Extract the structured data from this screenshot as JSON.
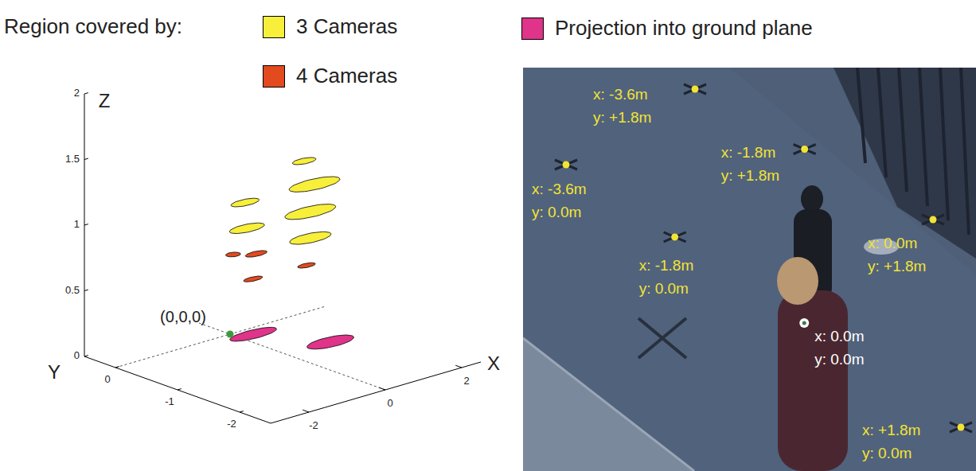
{
  "chart_data": {
    "type": "region3d",
    "legend_title": "Region covered by:",
    "x_label": "X",
    "y_label": "Y",
    "z_label": "Z",
    "xlim": [
      -3,
      2.5
    ],
    "ylim": [
      -2.5,
      0.5
    ],
    "zlim": [
      0,
      2
    ],
    "xticks": [
      -2,
      0,
      2
    ],
    "yticks": [
      -2,
      -1,
      0
    ],
    "zticks": [
      0,
      0.5,
      1,
      1.5,
      2
    ],
    "series": [
      {
        "name": "3 Cameras",
        "color": "#f7ef3a",
        "regions": [
          {
            "x": 0.64,
            "y": -0.8,
            "z": 1.4,
            "rx": 0.28,
            "ry": 0.08
          },
          {
            "x": 0.91,
            "y": -0.8,
            "z": 1.2,
            "rx": 0.62,
            "ry": 0.15
          },
          {
            "x": 0.8,
            "y": -0.8,
            "z": 1.0,
            "rx": 0.62,
            "ry": 0.15
          },
          {
            "x": 0.8,
            "y": -0.8,
            "z": 0.8,
            "rx": 0.5,
            "ry": 0.13
          },
          {
            "x": 0.23,
            "y": -0.1,
            "z": 1.0,
            "rx": 0.34,
            "ry": 0.09
          },
          {
            "x": 0.28,
            "y": -0.1,
            "z": 0.8,
            "rx": 0.42,
            "ry": 0.11
          }
        ]
      },
      {
        "name": "4 Cameras",
        "color": "#e34a1e",
        "regions": [
          {
            "x": 0.08,
            "y": 0,
            "z": 0.6,
            "rx": 0.16,
            "ry": 0.07
          },
          {
            "x": 0.44,
            "y": -0.15,
            "z": 0.6,
            "rx": 0.26,
            "ry": 0.07
          },
          {
            "x": 0.44,
            "y": -0.1,
            "z": 0.4,
            "rx": 0.23,
            "ry": 0.06
          },
          {
            "x": 0.7,
            "y": -0.8,
            "z": 0.6,
            "rx": 0.21,
            "ry": 0.06
          }
        ]
      },
      {
        "name": "Projection into ground plane",
        "color": "#e0338a",
        "regions": [
          {
            "x": 0.33,
            "y": -0.17,
            "z": 0,
            "rx": 0.58,
            "ry": 0.12
          },
          {
            "x": 1.13,
            "y": -0.92,
            "z": 0,
            "rx": 0.57,
            "ry": 0.14
          }
        ]
      }
    ],
    "origin": {
      "x": 0,
      "y": 0,
      "z": 0,
      "label": "(0,0,0)",
      "color": "#3c9a3c"
    }
  },
  "photo": {
    "color": "#f2e433",
    "markers": [
      {
        "x": -3.6,
        "y": 1.8,
        "label": [
          "x: -3.6m",
          "y: +1.8m"
        ]
      },
      {
        "x": -1.8,
        "y": 1.8,
        "label": [
          "x: -1.8m",
          "y: +1.8m"
        ]
      },
      {
        "x": 0.0,
        "y": 1.8,
        "label": [
          "x: 0.0m",
          "y: +1.8m"
        ]
      },
      {
        "x": -3.6,
        "y": 0.0,
        "label": [
          "x: -3.6m",
          "y: 0.0m"
        ]
      },
      {
        "x": -1.8,
        "y": 0.0,
        "label": [
          "x: -1.8m",
          "y: 0.0m"
        ]
      },
      {
        "x": 0.0,
        "y": 0.0,
        "label": [
          "x: 0.0m",
          "y: 0.0m"
        ],
        "color": "#ffffff"
      },
      {
        "x": 1.8,
        "y": 0.0,
        "label": [
          "x: +1.8m",
          "y: 0.0m"
        ]
      }
    ]
  }
}
